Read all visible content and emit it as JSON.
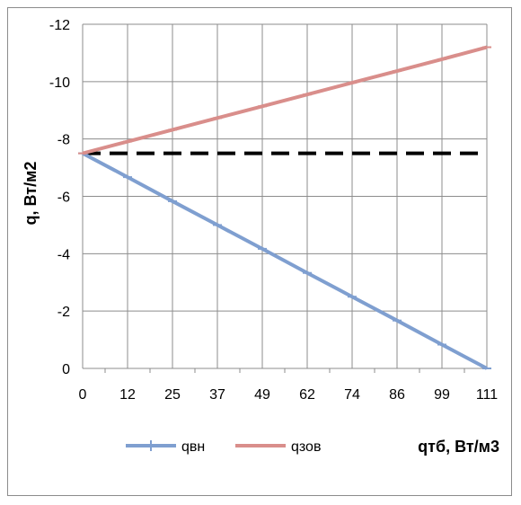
{
  "chart_data": {
    "type": "line",
    "xlabel": "qтб, Вт/м3",
    "ylabel": "q, Вт/м2",
    "x_ticks": [
      "0",
      "12",
      "25",
      "37",
      "49",
      "62",
      "74",
      "86",
      "99",
      "111"
    ],
    "x": [
      0,
      12,
      25,
      37,
      49,
      62,
      74,
      86,
      99,
      111
    ],
    "y_ticks": [
      "0",
      "-2",
      "-4",
      "-6",
      "-8",
      "-10",
      "-12"
    ],
    "y_tick_values": [
      0,
      2,
      4,
      6,
      8,
      10,
      12
    ],
    "ylim": [
      0,
      12
    ],
    "xlim": [
      0,
      111
    ],
    "y_axis_inverted_labels": true,
    "grid": true,
    "legend_position": "bottom",
    "series": [
      {
        "name": "qвн",
        "color": "#7f9fd0",
        "marker": "dash",
        "values": [
          7.5,
          6.67,
          5.83,
          5.0,
          4.17,
          3.33,
          2.5,
          1.67,
          0.83,
          0.0
        ]
      },
      {
        "name": "qзов",
        "color": "#d98e8b",
        "marker": "dash",
        "values": [
          7.5,
          7.91,
          8.32,
          8.73,
          9.14,
          9.55,
          9.96,
          10.37,
          10.78,
          11.2
        ]
      }
    ],
    "reference_line": {
      "y": 7.5,
      "style": "dashed",
      "color": "#000000"
    }
  }
}
